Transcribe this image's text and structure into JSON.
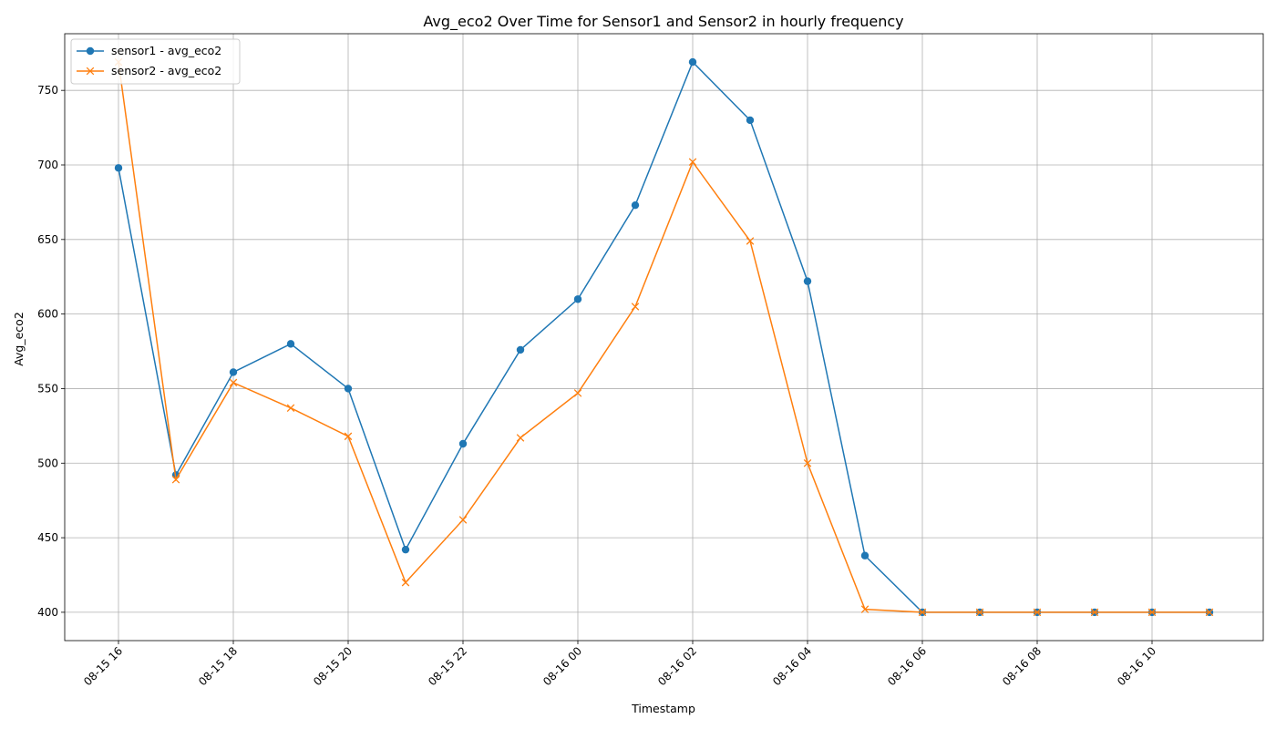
{
  "chart_data": {
    "type": "line",
    "title": "Avg_eco2 Over Time for Sensor1 and Sensor2 in hourly frequency",
    "xlabel": "Timestamp",
    "ylabel": "Avg_eco2",
    "x": [
      "08-15 16",
      "08-15 17",
      "08-15 18",
      "08-15 19",
      "08-15 20",
      "08-15 21",
      "08-15 22",
      "08-15 23",
      "08-16 00",
      "08-16 01",
      "08-16 02",
      "08-16 03",
      "08-16 04",
      "08-16 05",
      "08-16 06",
      "08-16 07",
      "08-16 08",
      "08-16 09",
      "08-16 10",
      "08-16 11"
    ],
    "x_tick_labels": [
      "08-15 16",
      "08-15 18",
      "08-15 20",
      "08-15 22",
      "08-16 00",
      "08-16 02",
      "08-16 04",
      "08-16 06",
      "08-16 08",
      "08-16 10"
    ],
    "y_ticks": [
      400,
      450,
      500,
      550,
      600,
      650,
      700,
      750
    ],
    "ylim": [
      381,
      788
    ],
    "grid": true,
    "legend_position": "top-left",
    "series": [
      {
        "name": "sensor1 - avg_eco2",
        "color": "#1f77b4",
        "marker": "circle",
        "values": [
          698,
          492,
          561,
          580,
          550,
          442,
          513,
          576,
          610,
          673,
          769,
          730,
          622,
          438,
          400,
          400,
          400,
          400,
          400,
          400
        ]
      },
      {
        "name": "sensor2 - avg_eco2",
        "color": "#ff7f0e",
        "marker": "x",
        "values": [
          769,
          489,
          554,
          537,
          518,
          420,
          462,
          517,
          547,
          605,
          702,
          649,
          500,
          402,
          400,
          400,
          400,
          400,
          400,
          400
        ]
      }
    ]
  }
}
